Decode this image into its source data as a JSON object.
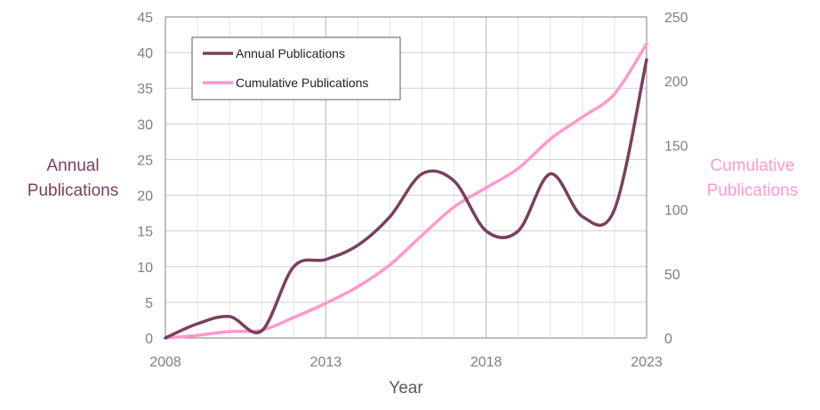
{
  "chart_data": {
    "type": "line",
    "x_axis": {
      "label": "Year",
      "range": [
        2008,
        2023
      ],
      "ticks": [
        "2008",
        "2013",
        "2018",
        "2023"
      ]
    },
    "y_left": {
      "label_lines": [
        "Annual",
        "Publications"
      ],
      "range": [
        0,
        45
      ],
      "ticks": [
        "0",
        "5",
        "10",
        "15",
        "20",
        "25",
        "30",
        "35",
        "40",
        "45"
      ]
    },
    "y_right": {
      "label_lines": [
        "Cumulative",
        "Publications"
      ],
      "range": [
        0,
        250
      ],
      "ticks": [
        "0",
        "50",
        "100",
        "150",
        "200",
        "250"
      ]
    },
    "grid": true,
    "legend_position": "top-left",
    "series": [
      {
        "name": "Annual Publications",
        "axis": "left",
        "color": "#7a3f5e",
        "x": [
          2008,
          2009,
          2010,
          2011,
          2012,
          2013,
          2014,
          2015,
          2016,
          2017,
          2018,
          2019,
          2020,
          2021,
          2022,
          2023
        ],
        "values": [
          0,
          2,
          3,
          1,
          10,
          11,
          13,
          17,
          23,
          22,
          15,
          15,
          23,
          17,
          18,
          39
        ]
      },
      {
        "name": "Cumulative Publications",
        "axis": "right",
        "color": "#ff99cc",
        "x": [
          2008,
          2009,
          2010,
          2011,
          2012,
          2013,
          2014,
          2015,
          2016,
          2017,
          2018,
          2019,
          2020,
          2021,
          2022,
          2023
        ],
        "values": [
          0,
          2,
          5,
          6,
          16,
          27,
          40,
          57,
          80,
          102,
          117,
          132,
          155,
          172,
          190,
          229
        ]
      }
    ]
  }
}
